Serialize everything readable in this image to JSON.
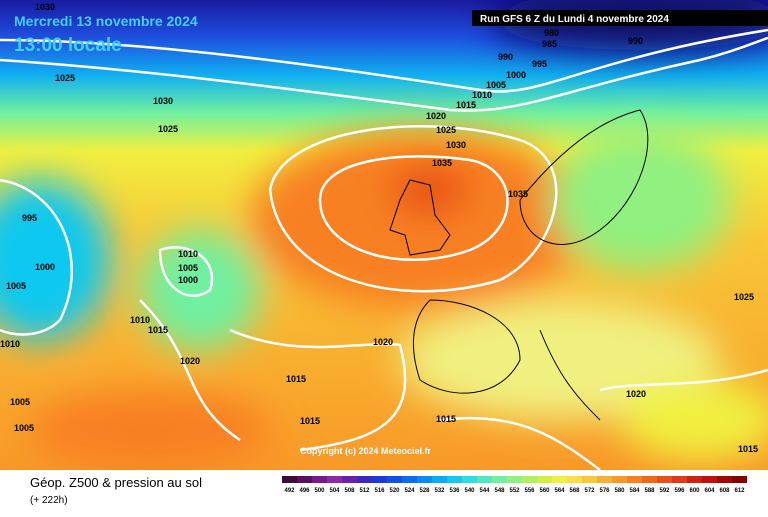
{
  "header": {
    "date": "Mercredi 13 novembre 2024",
    "time": "13:00 locale",
    "run": "Run GFS 6 Z du Lundi 4 novembre 2024"
  },
  "copyright": "Copyright (c) 2024 Meteociel.fr",
  "isobars": [
    "1030",
    "1025",
    "1030",
    "1025",
    "995",
    "1000",
    "1005",
    "1010",
    "1005",
    "1005",
    "1010",
    "1005",
    "1000",
    "1010",
    "1015",
    "1020",
    "1015",
    "1015",
    "1020",
    "1015",
    "1020",
    "1015",
    "1025",
    "1035",
    "1030",
    "1025",
    "1020",
    "1015",
    "1010",
    "1005",
    "1000",
    "995",
    "990",
    "990",
    "985",
    "980",
    "1035"
  ],
  "legend": {
    "title": "Géop. Z500 & pression au sol",
    "subtitle": "(+ 222h)"
  },
  "scale": {
    "ticks": [
      "492",
      "496",
      "500",
      "504",
      "508",
      "512",
      "516",
      "520",
      "524",
      "528",
      "532",
      "536",
      "540",
      "544",
      "548",
      "552",
      "556",
      "560",
      "564",
      "568",
      "572",
      "576",
      "580",
      "584",
      "588",
      "592",
      "596",
      "600",
      "604",
      "608",
      "612"
    ],
    "colors": [
      "#3a0a3a",
      "#5a1060",
      "#7a1a8a",
      "#8c2aa6",
      "#6a1fb0",
      "#3a28c0",
      "#1e3ad8",
      "#1050e8",
      "#0a6cf0",
      "#0a8cf4",
      "#0aacf4",
      "#10c8f0",
      "#30dce0",
      "#50e8c0",
      "#70f0a0",
      "#90f080",
      "#b0f060",
      "#d0f040",
      "#f0f040",
      "#f8e040",
      "#f8c838",
      "#f8b030",
      "#f89828",
      "#f88020",
      "#f06818",
      "#e85018",
      "#e03818",
      "#d02010",
      "#c01010",
      "#a00808",
      "#800000"
    ]
  }
}
